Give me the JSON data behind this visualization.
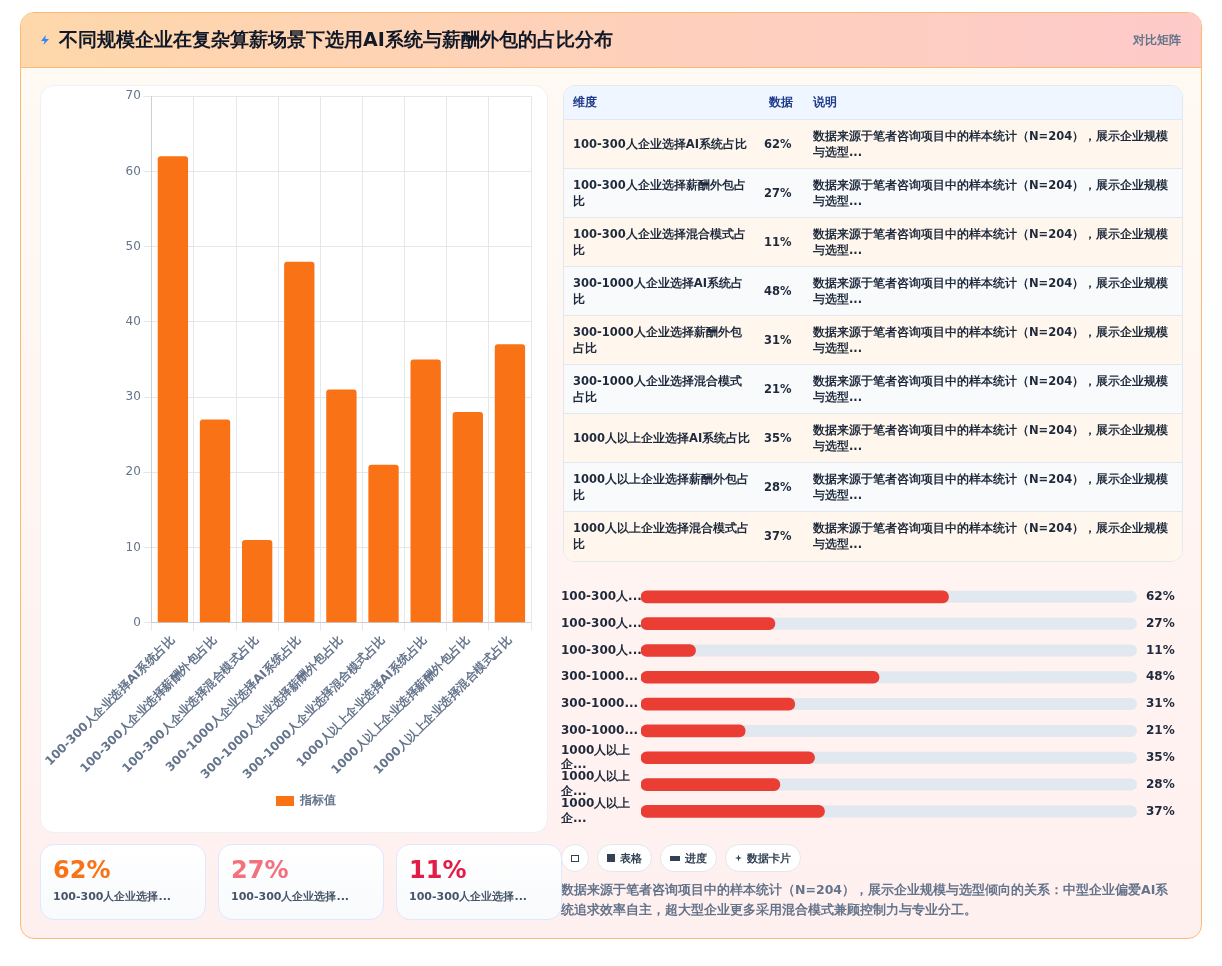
{
  "chart_data": [
    {
      "type": "other",
      "title": "不同规模企业在复杂算薪场景下选用AI系统与薪酬外包的占比分布",
      "subtitle": "对比矩阵"
    },
    {
      "type": "bar",
      "categories": [
        "100-300人企业选择AI系统占比",
        "100-300人企业选择薪酬外包占比",
        "100-300人企业选择混合模式占比",
        "300-1000人企业选择AI系统占比",
        "300-1000人企业选择薪酬外包占比",
        "300-1000人企业选择混合模式占比",
        "1000人以上企业选择AI系统占比",
        "1000人以上企业选择薪酬外包占比",
        "1000人以上企业选择混合模式占比"
      ],
      "series": [
        {
          "name": "指标值",
          "color": "#f97316",
          "values": [
            62,
            27,
            11,
            48,
            31,
            21,
            35,
            28,
            37
          ]
        }
      ],
      "ylim": [
        0,
        70
      ],
      "yticks": [
        0,
        10,
        20,
        30,
        40,
        50,
        60,
        70
      ],
      "grid": true,
      "legend": "bottom"
    },
    {
      "type": "other",
      "categories": [
        "100-300人企业选择AI系统占比",
        "100-300人企业选择薪酬外包占比",
        "100-300人企业选择混合模式占比",
        "300-1000人企业选择AI系统占比",
        "300-1000人企业选择薪酬外包占比",
        "300-1000人企业选择混合模式占比",
        "1000人以上企业选择AI系统占比",
        "1000人以上企业选择薪酬外包占比",
        "1000人以上企业选择混合模式占比"
      ],
      "value_labels": [
        "62%",
        "27%",
        "11%",
        "48%",
        "31%",
        "21%",
        "35%",
        "28%",
        "37%"
      ],
      "annotations": [
        "维度",
        "数据",
        "说明",
        "数据来源于笔者咨询项目中的样本统计（N=204），展示企业规模与选型...",
        "数据来源于笔者咨询项目中的样本统计（N=204），展示企业规模与选型...",
        "数据来源于笔者咨询项目中的样本统计（N=204），展示企业规模与选型...",
        "数据来源于笔者咨询项目中的样本统计（N=204），展示企业规模与选型...",
        "数据来源于笔者咨询项目中的样本统计（N=204），展示企业规模与选型...",
        "数据来源于笔者咨询项目中的样本统计（N=204），展示企业规模与选型...",
        "数据来源于笔者咨询项目中的样本统计（N=204），展示企业规模与选型...",
        "数据来源于笔者咨询项目中的样本统计（N=204），展示企业规模与选型...",
        "数据来源于笔者咨询项目中的样本统计（N=204），展示企业规模与选型..."
      ]
    },
    {
      "type": "bar",
      "orientation": "horizontal",
      "categories": [
        "100-300人...",
        "100-300人...",
        "100-300人...",
        "300-1000...",
        "300-1000...",
        "300-1000...",
        "1000人以上企...",
        "1000人以上企...",
        "1000人以上企..."
      ],
      "series": [
        {
          "color": "#ea3e35",
          "values": [
            62,
            27,
            11,
            48,
            31,
            21,
            35,
            28,
            37
          ],
          "value_labels": [
            "62%",
            "27%",
            "11%",
            "48%",
            "31%",
            "21%",
            "35%",
            "28%",
            "37%"
          ]
        }
      ],
      "tick_labels": "y",
      "annotations": [
        "表格",
        "进度",
        "数据卡片",
        "数据来源于笔者咨询项目中的样本统计（N=204），展示企业规模与选型倾向的关系：中型企业偏爱AI系统追求效率自主，超大型企业更多采用混合模式兼顾控制力与专业分工。"
      ]
    },
    {
      "type": "other",
      "categories": [
        "100-300人企业选择...",
        "100-300人企业选择...",
        "100-300人企业选择..."
      ],
      "value_labels": [
        "62%",
        "27%",
        "11%"
      ]
    }
  ]
}
